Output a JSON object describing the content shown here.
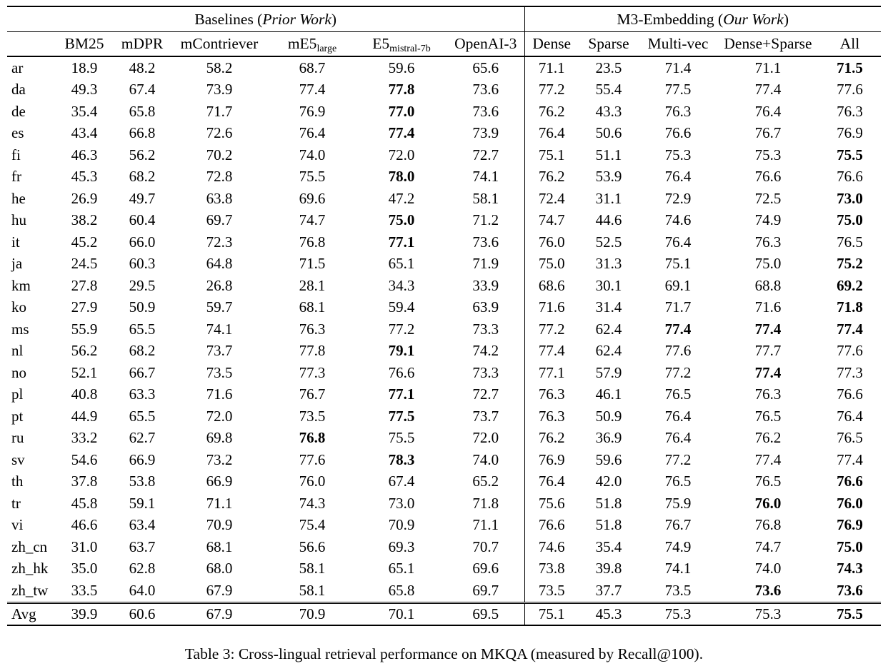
{
  "table": {
    "caption": "Table 3: Cross-lingual retrieval performance on MKQA (measured by Recall@100).",
    "groups": [
      {
        "prefix": "Baselines (",
        "italic": "Prior Work",
        "suffix": ")"
      },
      {
        "prefix": "M3-Embedding (",
        "italic": "Our Work",
        "suffix": ")"
      }
    ],
    "columns": [
      {
        "label": "BM25"
      },
      {
        "label": "mDPR"
      },
      {
        "label": "mContriever"
      },
      {
        "label": "mE5",
        "sub": "large"
      },
      {
        "label": "E5",
        "sub": "mistral-7b"
      },
      {
        "label": "OpenAI-3"
      },
      {
        "label": "Dense"
      },
      {
        "label": "Sparse"
      },
      {
        "label": "Multi-vec"
      },
      {
        "label": "Dense+Sparse"
      },
      {
        "label": "All"
      }
    ],
    "rows": [
      {
        "lang": "ar",
        "values": [
          "18.9",
          "48.2",
          "58.2",
          "68.7",
          "59.6",
          "65.6",
          "71.1",
          "23.5",
          "71.4",
          "71.1",
          "71.5"
        ],
        "bold": [
          10
        ]
      },
      {
        "lang": "da",
        "values": [
          "49.3",
          "67.4",
          "73.9",
          "77.4",
          "77.8",
          "73.6",
          "77.2",
          "55.4",
          "77.5",
          "77.4",
          "77.6"
        ],
        "bold": [
          4
        ]
      },
      {
        "lang": "de",
        "values": [
          "35.4",
          "65.8",
          "71.7",
          "76.9",
          "77.0",
          "73.6",
          "76.2",
          "43.3",
          "76.3",
          "76.4",
          "76.3"
        ],
        "bold": [
          4
        ]
      },
      {
        "lang": "es",
        "values": [
          "43.4",
          "66.8",
          "72.6",
          "76.4",
          "77.4",
          "73.9",
          "76.4",
          "50.6",
          "76.6",
          "76.7",
          "76.9"
        ],
        "bold": [
          4
        ]
      },
      {
        "lang": "fi",
        "values": [
          "46.3",
          "56.2",
          "70.2",
          "74.0",
          "72.0",
          "72.7",
          "75.1",
          "51.1",
          "75.3",
          "75.3",
          "75.5"
        ],
        "bold": [
          10
        ]
      },
      {
        "lang": "fr",
        "values": [
          "45.3",
          "68.2",
          "72.8",
          "75.5",
          "78.0",
          "74.1",
          "76.2",
          "53.9",
          "76.4",
          "76.6",
          "76.6"
        ],
        "bold": [
          4
        ]
      },
      {
        "lang": "he",
        "values": [
          "26.9",
          "49.7",
          "63.8",
          "69.6",
          "47.2",
          "58.1",
          "72.4",
          "31.1",
          "72.9",
          "72.5",
          "73.0"
        ],
        "bold": [
          10
        ]
      },
      {
        "lang": "hu",
        "values": [
          "38.2",
          "60.4",
          "69.7",
          "74.7",
          "75.0",
          "71.2",
          "74.7",
          "44.6",
          "74.6",
          "74.9",
          "75.0"
        ],
        "bold": [
          4,
          10
        ]
      },
      {
        "lang": "it",
        "values": [
          "45.2",
          "66.0",
          "72.3",
          "76.8",
          "77.1",
          "73.6",
          "76.0",
          "52.5",
          "76.4",
          "76.3",
          "76.5"
        ],
        "bold": [
          4
        ]
      },
      {
        "lang": "ja",
        "values": [
          "24.5",
          "60.3",
          "64.8",
          "71.5",
          "65.1",
          "71.9",
          "75.0",
          "31.3",
          "75.1",
          "75.0",
          "75.2"
        ],
        "bold": [
          10
        ]
      },
      {
        "lang": "km",
        "values": [
          "27.8",
          "29.5",
          "26.8",
          "28.1",
          "34.3",
          "33.9",
          "68.6",
          "30.1",
          "69.1",
          "68.8",
          "69.2"
        ],
        "bold": [
          10
        ]
      },
      {
        "lang": "ko",
        "values": [
          "27.9",
          "50.9",
          "59.7",
          "68.1",
          "59.4",
          "63.9",
          "71.6",
          "31.4",
          "71.7",
          "71.6",
          "71.8"
        ],
        "bold": [
          10
        ]
      },
      {
        "lang": "ms",
        "values": [
          "55.9",
          "65.5",
          "74.1",
          "76.3",
          "77.2",
          "73.3",
          "77.2",
          "62.4",
          "77.4",
          "77.4",
          "77.4"
        ],
        "bold": [
          8,
          9,
          10
        ]
      },
      {
        "lang": "nl",
        "values": [
          "56.2",
          "68.2",
          "73.7",
          "77.8",
          "79.1",
          "74.2",
          "77.4",
          "62.4",
          "77.6",
          "77.7",
          "77.6"
        ],
        "bold": [
          4
        ]
      },
      {
        "lang": "no",
        "values": [
          "52.1",
          "66.7",
          "73.5",
          "77.3",
          "76.6",
          "73.3",
          "77.1",
          "57.9",
          "77.2",
          "77.4",
          "77.3"
        ],
        "bold": [
          9
        ]
      },
      {
        "lang": "pl",
        "values": [
          "40.8",
          "63.3",
          "71.6",
          "76.7",
          "77.1",
          "72.7",
          "76.3",
          "46.1",
          "76.5",
          "76.3",
          "76.6"
        ],
        "bold": [
          4
        ]
      },
      {
        "lang": "pt",
        "values": [
          "44.9",
          "65.5",
          "72.0",
          "73.5",
          "77.5",
          "73.7",
          "76.3",
          "50.9",
          "76.4",
          "76.5",
          "76.4"
        ],
        "bold": [
          4
        ]
      },
      {
        "lang": "ru",
        "values": [
          "33.2",
          "62.7",
          "69.8",
          "76.8",
          "75.5",
          "72.0",
          "76.2",
          "36.9",
          "76.4",
          "76.2",
          "76.5"
        ],
        "bold": [
          3
        ]
      },
      {
        "lang": "sv",
        "values": [
          "54.6",
          "66.9",
          "73.2",
          "77.6",
          "78.3",
          "74.0",
          "76.9",
          "59.6",
          "77.2",
          "77.4",
          "77.4"
        ],
        "bold": [
          4
        ]
      },
      {
        "lang": "th",
        "values": [
          "37.8",
          "53.8",
          "66.9",
          "76.0",
          "67.4",
          "65.2",
          "76.4",
          "42.0",
          "76.5",
          "76.5",
          "76.6"
        ],
        "bold": [
          10
        ]
      },
      {
        "lang": "tr",
        "values": [
          "45.8",
          "59.1",
          "71.1",
          "74.3",
          "73.0",
          "71.8",
          "75.6",
          "51.8",
          "75.9",
          "76.0",
          "76.0"
        ],
        "bold": [
          9,
          10
        ]
      },
      {
        "lang": "vi",
        "values": [
          "46.6",
          "63.4",
          "70.9",
          "75.4",
          "70.9",
          "71.1",
          "76.6",
          "51.8",
          "76.7",
          "76.8",
          "76.9"
        ],
        "bold": [
          10
        ]
      },
      {
        "lang": "zh_cn",
        "values": [
          "31.0",
          "63.7",
          "68.1",
          "56.6",
          "69.3",
          "70.7",
          "74.6",
          "35.4",
          "74.9",
          "74.7",
          "75.0"
        ],
        "bold": [
          10
        ]
      },
      {
        "lang": "zh_hk",
        "values": [
          "35.0",
          "62.8",
          "68.0",
          "58.1",
          "65.1",
          "69.6",
          "73.8",
          "39.8",
          "74.1",
          "74.0",
          "74.3"
        ],
        "bold": [
          10
        ]
      },
      {
        "lang": "zh_tw",
        "values": [
          "33.5",
          "64.0",
          "67.9",
          "58.1",
          "65.8",
          "69.7",
          "73.5",
          "37.7",
          "73.5",
          "73.6",
          "73.6"
        ],
        "bold": [
          9,
          10
        ]
      },
      {
        "lang": "Avg",
        "values": [
          "39.9",
          "60.6",
          "67.9",
          "70.9",
          "70.1",
          "69.5",
          "75.1",
          "45.3",
          "75.3",
          "75.3",
          "75.5"
        ],
        "bold": [
          10
        ],
        "avg": true
      }
    ]
  }
}
